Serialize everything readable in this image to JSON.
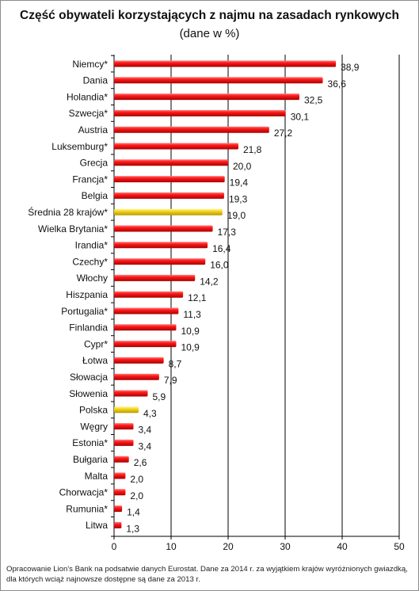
{
  "title": "Część obywateli korzystających z najmu na zasadach rynkowych",
  "subtitle": "(dane w %)",
  "source_note": "Opracowanie Lion's Bank na podsatwie danych Eurostat. Dane za 2014 r. za wyjątkiem krajów wyróżnionych gwiazdką, dla których wciąż najnowsze dostępne są dane za 2013 r.",
  "colors": {
    "bar": "#e8000b",
    "bar_highlight": "#f2d21c",
    "grid": "#000000"
  },
  "chart_data": {
    "type": "bar",
    "orientation": "horizontal",
    "categories": [
      "Niemcy*",
      "Dania",
      "Holandia*",
      "Szwecja*",
      "Austria",
      "Luksemburg*",
      "Grecja",
      "Francja*",
      "Belgia",
      "Średnia 28 krajów*",
      "Wielka Brytania*",
      "Irandia*",
      "Czechy*",
      "Włochy",
      "Hiszpania",
      "Portugalia*",
      "Finlandia",
      "Cypr*",
      "Łotwa",
      "Słowacja",
      "Słowenia",
      "Polska",
      "Węgry",
      "Estonia*",
      "Bułgaria",
      "Malta",
      "Chorwacja*",
      "Rumunia*",
      "Litwa"
    ],
    "values": [
      38.9,
      36.6,
      32.5,
      30.1,
      27.2,
      21.8,
      20.0,
      19.4,
      19.3,
      19.0,
      17.3,
      16.4,
      16.0,
      14.2,
      12.1,
      11.3,
      10.9,
      10.9,
      8.7,
      7.9,
      5.9,
      4.3,
      3.4,
      3.4,
      2.6,
      2.0,
      2.0,
      1.4,
      1.3
    ],
    "value_labels": [
      "38,9",
      "36,6",
      "32,5",
      "30,1",
      "27,2",
      "21,8",
      "20,0",
      "19,4",
      "19,3",
      "19,0",
      "17,3",
      "16,4",
      "16,0",
      "14,2",
      "12,1",
      "11,3",
      "10,9",
      "10,9",
      "8,7",
      "7,9",
      "5,9",
      "4,3",
      "3,4",
      "3,4",
      "2,6",
      "2,0",
      "2,0",
      "1,4",
      "1,3"
    ],
    "highlighted": [
      "Średnia 28 krajów*",
      "Polska"
    ],
    "xlim": [
      0,
      50
    ],
    "xticks": [
      0,
      10,
      20,
      30,
      40,
      50
    ],
    "xtick_labels": [
      "0",
      "10",
      "20",
      "30",
      "40",
      "50"
    ],
    "grid": true
  }
}
